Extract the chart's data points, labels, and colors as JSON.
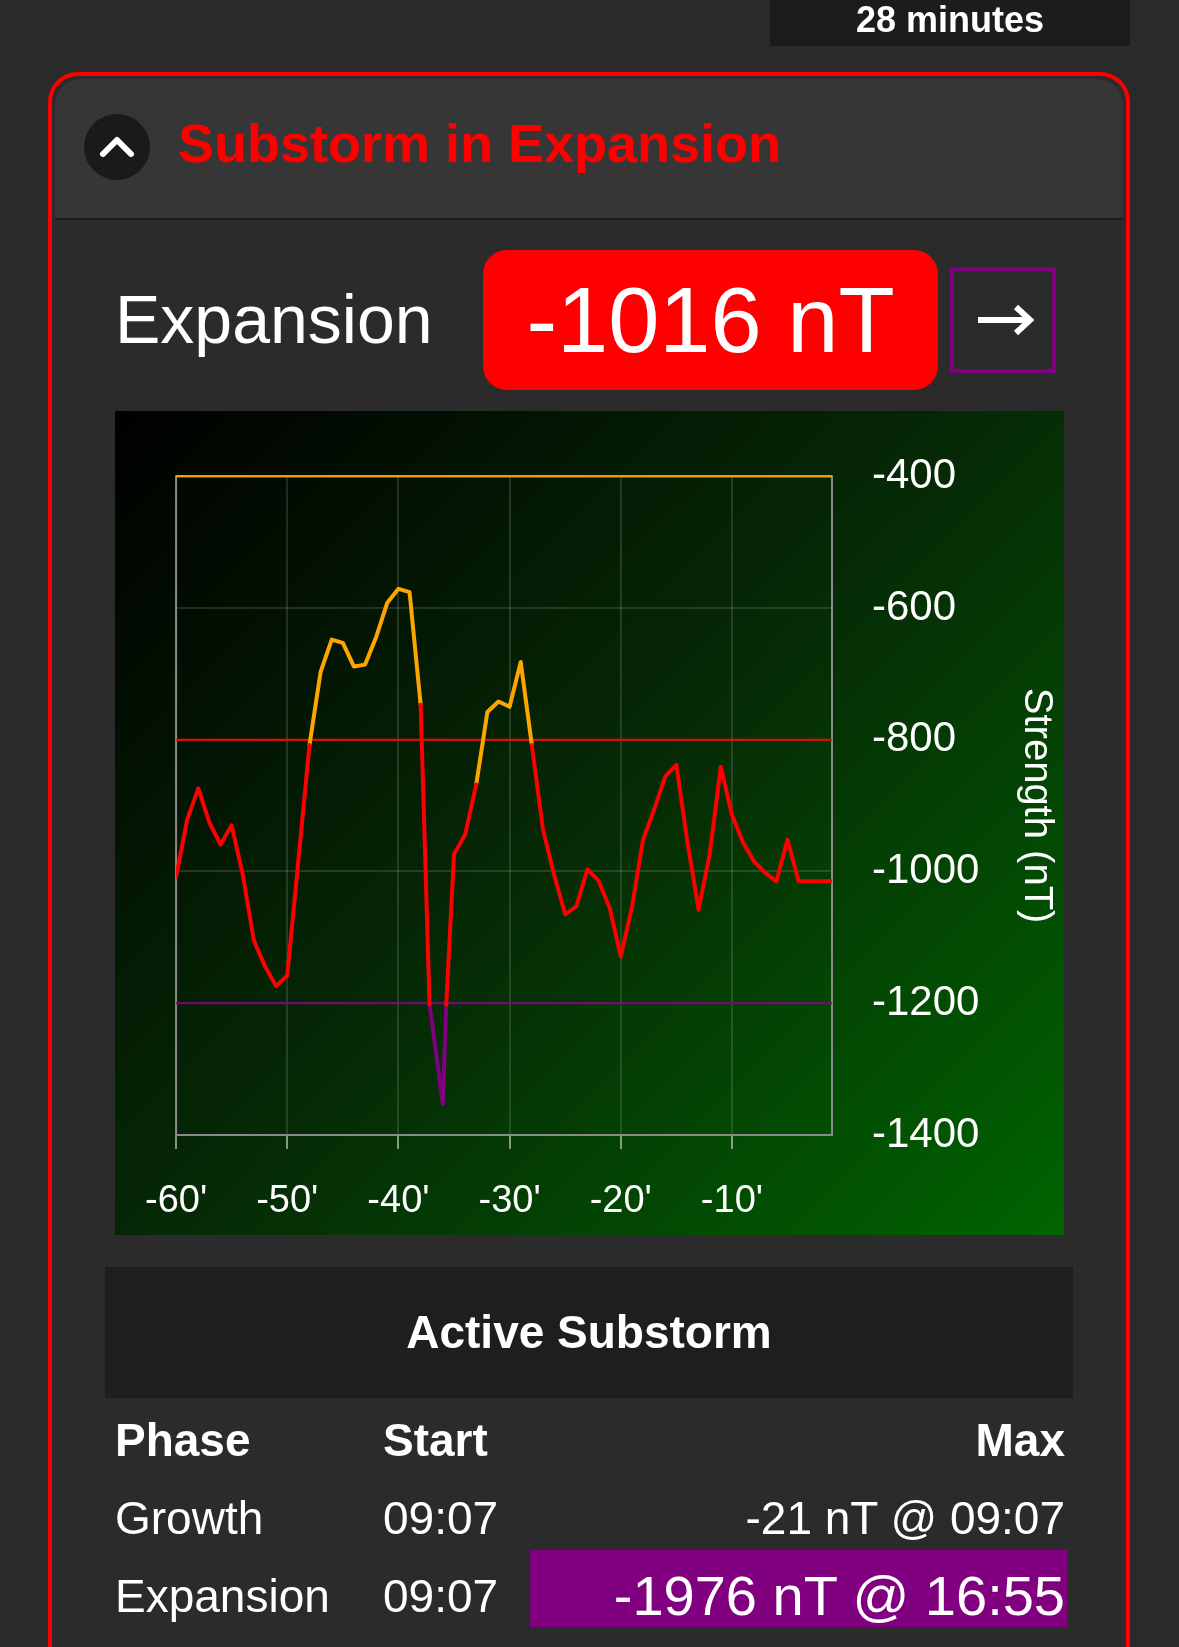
{
  "chart_data": {
    "type": "line",
    "title": "Substorm in Expansion",
    "ylabel": "Strength (nT)",
    "annotations": [
      "28 minutes",
      "Expansion",
      "-1016 nT",
      "Active Substorm",
      "Phase",
      "Start",
      "Max",
      "Growth",
      "09:07",
      "-21 nT @ 09:07",
      "Expansion",
      "09:07",
      "-1976 nT @ 16:55"
    ],
    "x": [
      -60,
      -59,
      -58,
      -57,
      -56,
      -55,
      -54,
      -53,
      -52,
      -51,
      -50,
      -49,
      -48,
      -47,
      -46,
      -45,
      -44,
      -43,
      -42,
      -41,
      -40,
      -39,
      -38,
      -37.2,
      -36,
      -35.7,
      -35,
      -34,
      -33,
      -32,
      -31,
      -30,
      -29,
      -28,
      -27,
      -26,
      -25,
      -24,
      -23,
      -22,
      -21,
      -20,
      -19,
      -18,
      -17,
      -16,
      -15,
      -14,
      -13,
      -12,
      -11,
      -10,
      -9,
      -8,
      -7,
      -6,
      -5,
      -4,
      -1
    ],
    "series": [
      {
        "color": "#ff0000",
        "values": [
          -1008,
          -921,
          -874,
          -926,
          -959,
          -930,
          -1005,
          -1105,
          -1144,
          -1174,
          -1158,
          -983,
          -808,
          null,
          null,
          null,
          null,
          null,
          null,
          null,
          null,
          null,
          -747,
          -1202,
          null,
          -1202,
          -974,
          -944,
          -868,
          null,
          null,
          null,
          null,
          -808,
          -936,
          -1005,
          -1065,
          -1053,
          -997,
          -1014,
          -1055,
          -1129,
          -1055,
          -952,
          -906,
          -856,
          -838,
          -956,
          -1058,
          -974,
          -841,
          -914,
          -956,
          -985,
          -1002,
          -1015,
          -952,
          -1015,
          -1015
        ]
      },
      {
        "color": "#ffa500",
        "values": [
          null,
          null,
          null,
          null,
          null,
          null,
          null,
          null,
          null,
          null,
          null,
          null,
          -808,
          -697,
          -648,
          -653,
          -689,
          -686,
          -644,
          -592,
          -571,
          -576,
          -747,
          null,
          null,
          null,
          null,
          null,
          -868,
          -758,
          -742,
          -750,
          -682,
          -808,
          null,
          null,
          null,
          null,
          null,
          null,
          null,
          null,
          null,
          null,
          null,
          null,
          null,
          null,
          null,
          null,
          null,
          null,
          null,
          null,
          null,
          null,
          null,
          null,
          null
        ]
      },
      {
        "color": "#800080",
        "values": [
          null,
          null,
          null,
          null,
          null,
          null,
          null,
          null,
          null,
          null,
          null,
          null,
          null,
          null,
          null,
          null,
          null,
          null,
          null,
          null,
          null,
          null,
          null,
          -1202,
          -1353,
          -1202,
          null,
          null,
          null,
          null,
          null,
          null,
          null,
          null,
          null,
          null,
          null,
          null,
          null,
          null,
          null,
          null,
          null,
          null,
          null,
          null,
          null,
          null,
          null,
          null,
          null,
          null,
          null,
          null,
          null,
          null,
          null,
          null,
          null
        ]
      }
    ],
    "xlim": [
      -60,
      -1
    ],
    "xticks": [
      {
        "value": -60,
        "label": "-60'"
      },
      {
        "value": -50,
        "label": "-50'"
      },
      {
        "value": -40,
        "label": "-40'"
      },
      {
        "value": -30,
        "label": "-30'"
      },
      {
        "value": -20,
        "label": "-20'"
      },
      {
        "value": -10,
        "label": "-10'"
      }
    ],
    "ylim": [
      -1400,
      -400
    ],
    "yticks": [
      -1400,
      -1200,
      -1000,
      -800,
      -600,
      -400
    ],
    "ref_lines": [
      {
        "axis": "y",
        "value": -400,
        "color": "#ffa500"
      },
      {
        "axis": "y",
        "value": -800,
        "color": "#ff0000"
      },
      {
        "axis": "y",
        "value": -1200,
        "color": "#800080"
      }
    ],
    "grid": true,
    "legend": false,
    "marker": "none",
    "line_style": "solid"
  }
}
